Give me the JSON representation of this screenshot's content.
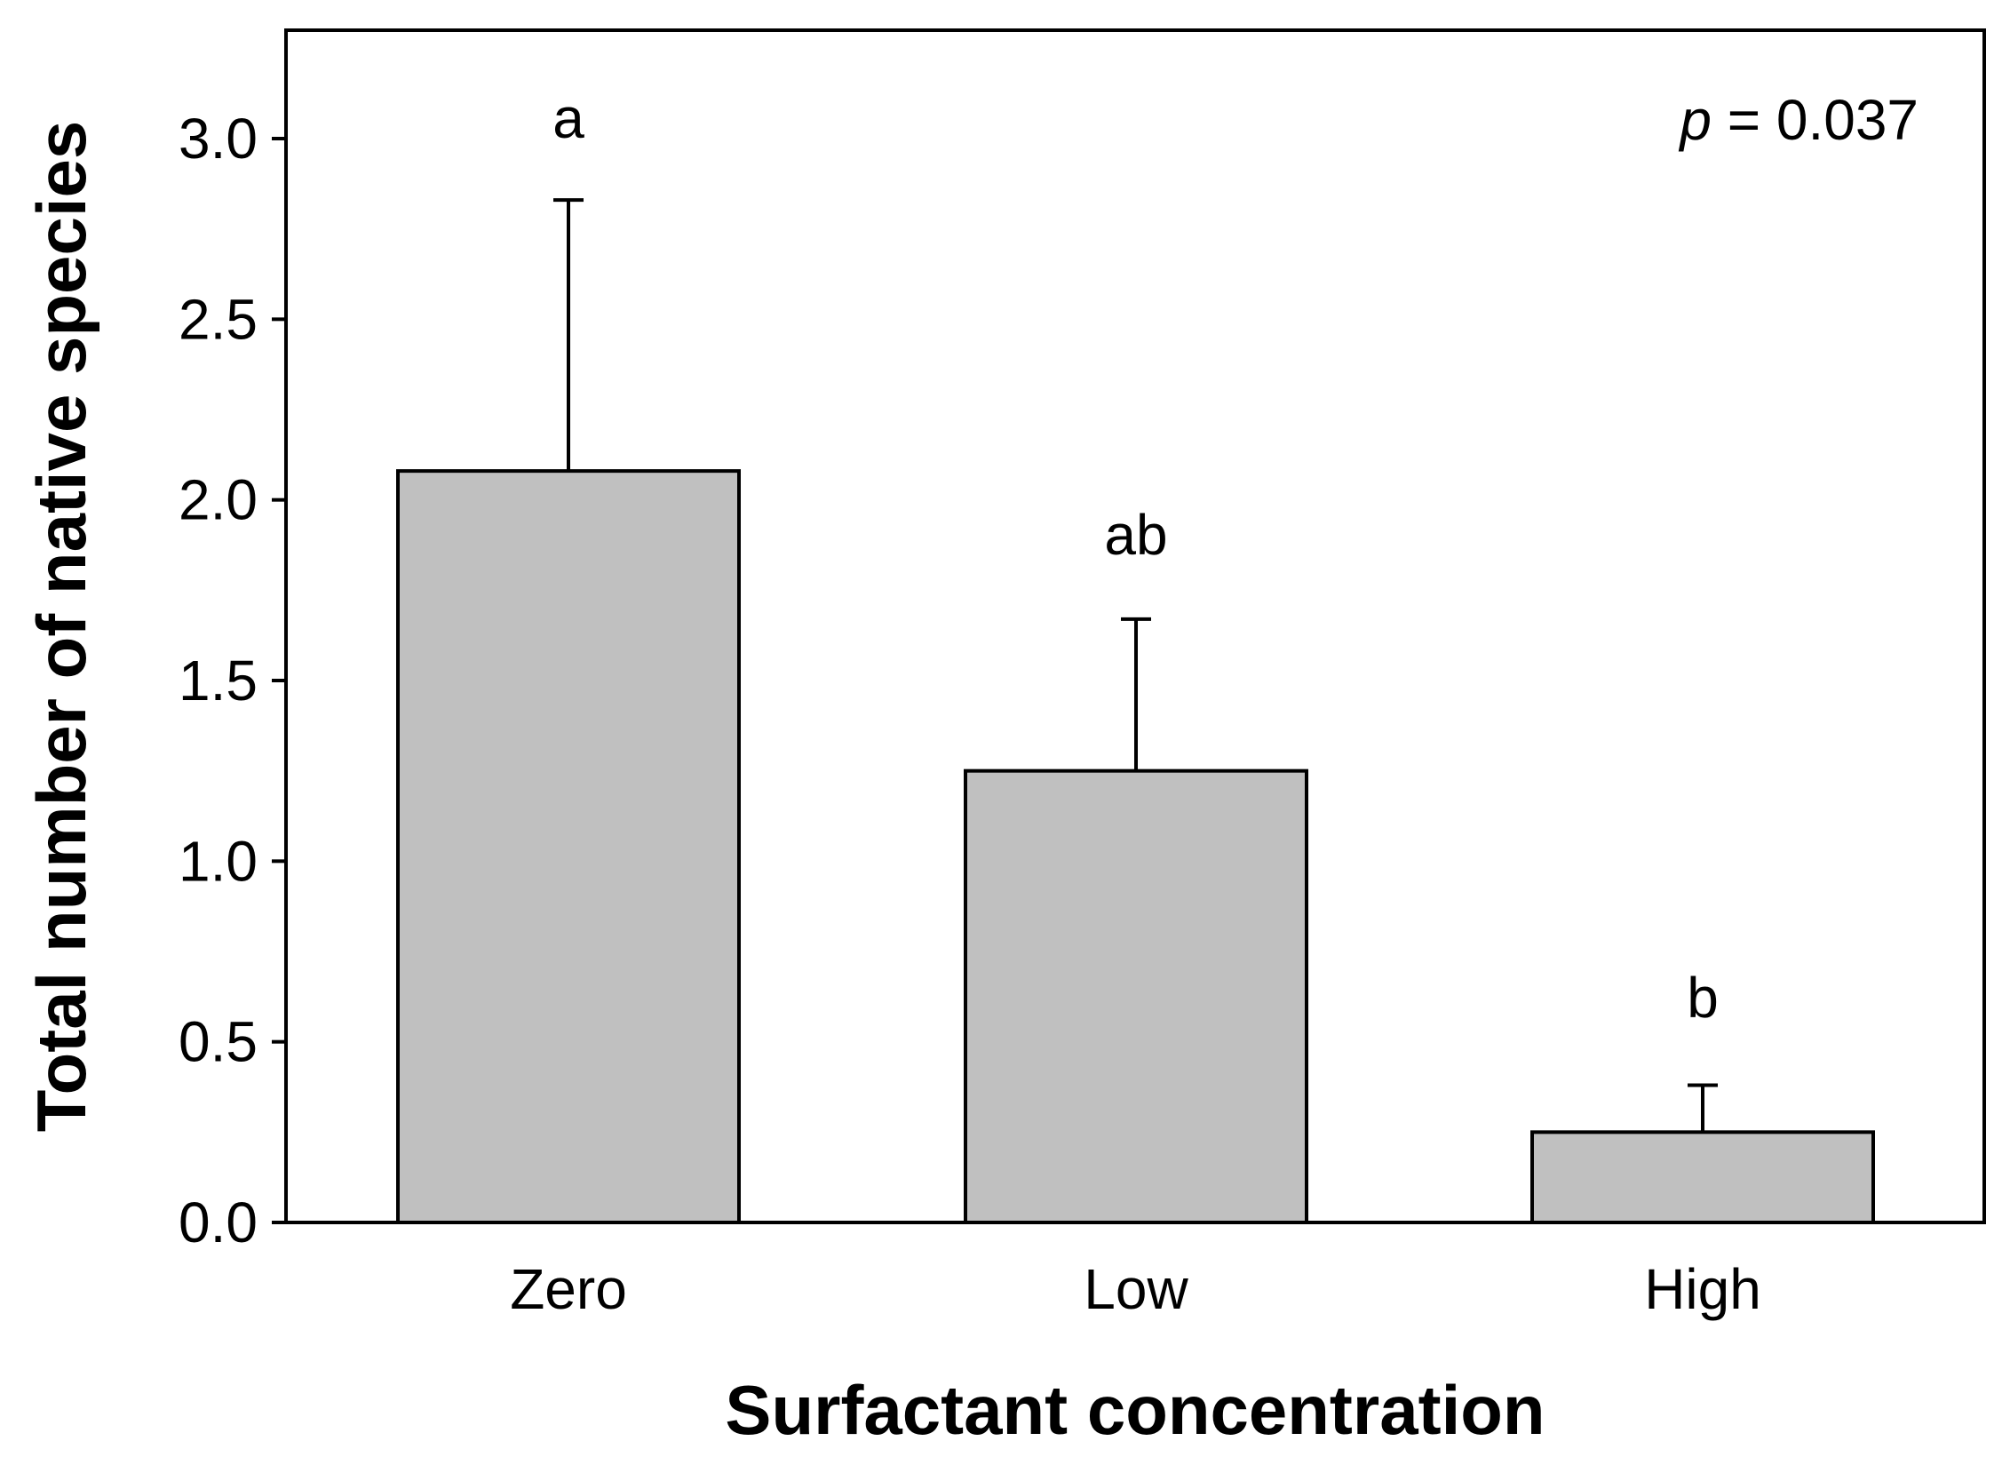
{
  "chart_data": {
    "type": "bar",
    "title": "",
    "xlabel": "Surfactant concentration",
    "ylabel": "Total number of native species",
    "categories": [
      "Zero",
      "Low",
      "High"
    ],
    "values": [
      2.08,
      1.25,
      0.25
    ],
    "error_upper": [
      2.83,
      1.67,
      0.38
    ],
    "significance_letters": [
      "a",
      "ab",
      "b"
    ],
    "ylim": [
      0,
      3.3
    ],
    "yticks": [
      0.0,
      0.5,
      1.0,
      1.5,
      2.0,
      2.5,
      3.0
    ],
    "ytick_labels": [
      "0.0",
      "0.5",
      "1.0",
      "1.5",
      "2.0",
      "2.5",
      "3.0"
    ],
    "annotation": {
      "p_symbol": "p",
      "p_rest": " = 0.037"
    },
    "grid": false,
    "colors": {
      "bar_fill": "#c0c0c0",
      "bar_stroke": "#000000",
      "axis": "#000000"
    }
  }
}
